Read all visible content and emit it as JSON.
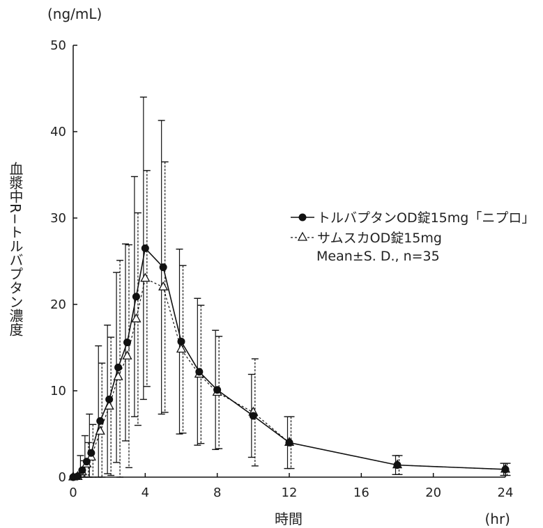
{
  "chart_data": {
    "type": "line",
    "xlabel": "時間",
    "xunit": "(hr)",
    "ylabel": "血漿中R−トルバプタン濃度",
    "yunit": "(ng/mL)",
    "xlim": [
      0,
      24
    ],
    "ylim": [
      0,
      50
    ],
    "xticks": [
      0,
      4,
      8,
      12,
      16,
      20,
      24
    ],
    "yticks": [
      0,
      10,
      20,
      30,
      40,
      50
    ],
    "grid": false,
    "legend_position": "right",
    "legend_note": "Mean±S. D., n=35",
    "x": [
      0,
      0.25,
      0.5,
      0.75,
      1,
      1.5,
      2,
      2.5,
      3,
      3.5,
      4,
      5,
      6,
      7,
      8,
      10,
      12,
      18,
      24
    ],
    "series": [
      {
        "name": "トルバプタンOD錠15mg「ニプロ」",
        "marker": "filled-circle",
        "line": "solid",
        "values": [
          0,
          0.1,
          0.8,
          1.8,
          2.8,
          6.5,
          9.0,
          12.7,
          15.6,
          20.9,
          26.5,
          24.3,
          15.7,
          12.2,
          10.1,
          7.1,
          4.0,
          1.4,
          0.9
        ],
        "sd": [
          0,
          0.2,
          1.7,
          3.0,
          4.5,
          8.7,
          8.6,
          11.0,
          11.4,
          13.9,
          17.5,
          17.0,
          10.7,
          8.5,
          6.9,
          4.8,
          3.0,
          1.1,
          0.7
        ]
      },
      {
        "name": "サムスカOD錠15mg",
        "marker": "open-triangle",
        "line": "dashed",
        "values": [
          0,
          0.05,
          0.6,
          1.5,
          2.3,
          5.3,
          8.2,
          11.6,
          14.0,
          18.3,
          23.0,
          22.0,
          14.8,
          11.9,
          9.8,
          7.5,
          4.0,
          1.4,
          0.9
        ],
        "sd": [
          0,
          0.2,
          1.3,
          2.5,
          3.8,
          7.9,
          8.0,
          13.5,
          12.9,
          12.3,
          12.5,
          14.5,
          9.7,
          8.0,
          6.5,
          6.2,
          3.0,
          1.1,
          0.7
        ]
      }
    ]
  }
}
